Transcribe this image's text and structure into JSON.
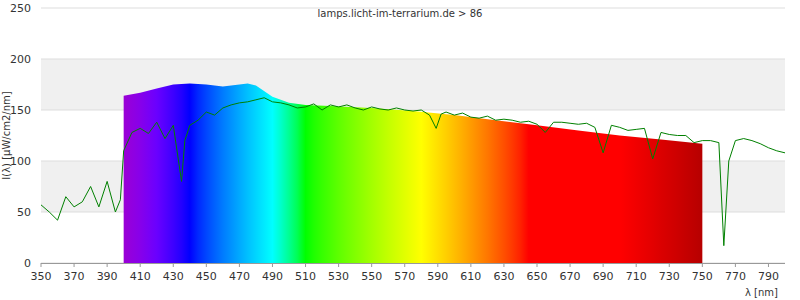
{
  "chart_data": {
    "type": "line",
    "title": "lamps.licht-im-terrarium.de > 86",
    "x_label": "λ [nm]",
    "y_label": "I(λ) [µW/cm2/nm]",
    "xlim": [
      350,
      800
    ],
    "xticks": [
      350,
      370,
      390,
      410,
      430,
      450,
      470,
      490,
      510,
      530,
      550,
      570,
      590,
      610,
      630,
      650,
      670,
      690,
      710,
      730,
      750,
      770,
      790
    ],
    "ylim": [
      0,
      250
    ],
    "yticks": [
      0,
      50,
      100,
      150,
      200,
      250
    ],
    "grid": true,
    "series": [
      {
        "type": "area",
        "x": [
          400,
          410,
          420,
          430,
          440,
          450,
          460,
          470,
          475,
          480,
          490,
          500,
          510,
          525,
          550,
          575,
          600,
          625,
          650,
          675,
          700,
          725,
          750
        ],
        "values": [
          164,
          167,
          171,
          175,
          176,
          175,
          173,
          175,
          176,
          174,
          163,
          157,
          155,
          154,
          152,
          149,
          145,
          140,
          135,
          130,
          125,
          121,
          117
        ]
      },
      {
        "type": "line",
        "color": "#008000",
        "x": [
          350,
          355,
          360,
          365,
          370,
          375,
          380,
          385,
          390,
          395,
          398,
          400,
          405,
          410,
          415,
          420,
          425,
          430,
          435,
          437,
          440,
          445,
          450,
          455,
          460,
          465,
          470,
          475,
          480,
          485,
          490,
          495,
          500,
          505,
          510,
          515,
          520,
          525,
          530,
          535,
          540,
          545,
          550,
          555,
          560,
          565,
          570,
          575,
          580,
          585,
          589,
          592,
          595,
          600,
          605,
          610,
          615,
          620,
          625,
          630,
          635,
          640,
          645,
          650,
          655,
          660,
          665,
          670,
          675,
          680,
          685,
          690,
          695,
          700,
          705,
          710,
          715,
          720,
          725,
          730,
          735,
          740,
          745,
          750,
          755,
          760,
          763,
          766,
          770,
          775,
          780,
          785,
          790,
          795,
          800
        ],
        "values": [
          57,
          50,
          42,
          65,
          55,
          60,
          75,
          55,
          80,
          50,
          62,
          110,
          128,
          132,
          127,
          138,
          122,
          135,
          80,
          120,
          135,
          140,
          148,
          145,
          152,
          155,
          157,
          158,
          160,
          162,
          158,
          157,
          155,
          152,
          153,
          156,
          150,
          155,
          153,
          155,
          152,
          150,
          153,
          151,
          150,
          152,
          150,
          149,
          150,
          145,
          132,
          146,
          148,
          145,
          147,
          143,
          142,
          144,
          140,
          141,
          140,
          138,
          139,
          136,
          128,
          138,
          138,
          137,
          136,
          137,
          133,
          108,
          135,
          133,
          130,
          131,
          132,
          102,
          128,
          126,
          125,
          125,
          118,
          120,
          120,
          118,
          17,
          100,
          120,
          122,
          120,
          117,
          113,
          110,
          108
        ]
      }
    ]
  }
}
